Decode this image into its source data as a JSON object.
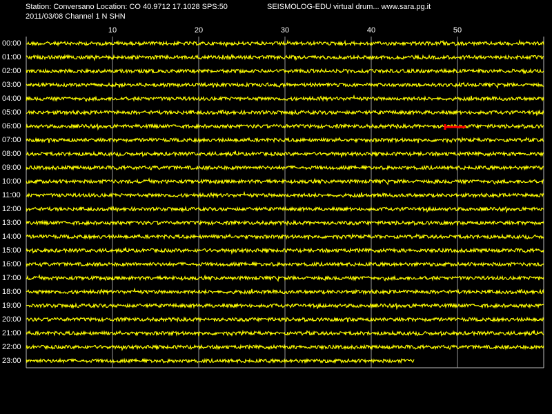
{
  "chart_data": {
    "type": "helicorder",
    "title": "Station: Conversano Location: CO 40.9712 17.1028 SPS:50",
    "subtitle": "SEISMOLOG-EDU virtual drum... www.sara.pg.it",
    "date_channel": "2011/03/08  Channel 1 N SHN",
    "categories": [
      "00:00",
      "01:00",
      "02:00",
      "03:00",
      "04:00",
      "05:00",
      "06:00",
      "07:00",
      "08:00",
      "09:00",
      "10:00",
      "11:00",
      "12:00",
      "13:00",
      "14:00",
      "15:00",
      "16:00",
      "17:00",
      "18:00",
      "19:00",
      "20:00",
      "21:00",
      "22:00",
      "23:00"
    ],
    "values": [
      60,
      60,
      60,
      60,
      60,
      60,
      60,
      60,
      60,
      60,
      60,
      60,
      60,
      60,
      60,
      60,
      60,
      60,
      60,
      60,
      60,
      60,
      60,
      45
    ],
    "color": "#ffff00",
    "xlim": [
      0,
      60
    ],
    "xticks": [
      10,
      20,
      30,
      40,
      50
    ],
    "grid": true
  }
}
